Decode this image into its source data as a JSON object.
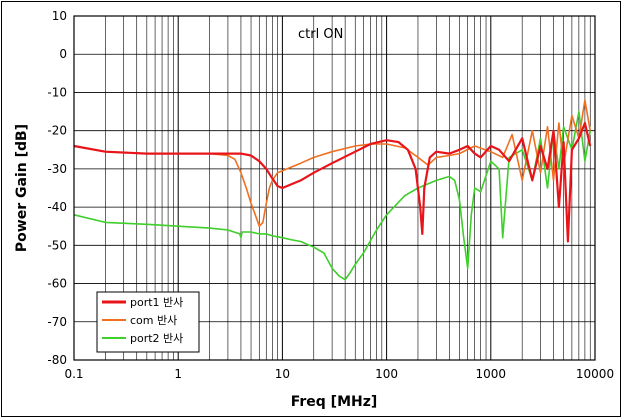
{
  "chart_data": {
    "type": "line",
    "title": "",
    "annotation": "ctrl ON",
    "xlabel": "Freq [MHz]",
    "ylabel": "Power Gain [dB]",
    "xscale": "log",
    "xlim": [
      0.1,
      10000
    ],
    "ylim": [
      -80,
      10
    ],
    "x_ticks": [
      "0.1",
      "1",
      "10",
      "100",
      "1000",
      "10000"
    ],
    "y_ticks": [
      "10",
      "0",
      "-10",
      "-20",
      "-30",
      "-40",
      "-50",
      "-60",
      "-70",
      "-80"
    ],
    "grid": true,
    "legend_position": "bottom-left",
    "series": [
      {
        "name": "port1 반사",
        "color": "#e8141a",
        "x": [
          0.1,
          0.2,
          0.5,
          1,
          2,
          3,
          4,
          5,
          6,
          7,
          8,
          9,
          10,
          15,
          20,
          30,
          50,
          70,
          100,
          130,
          160,
          190,
          210,
          220,
          230,
          260,
          300,
          400,
          500,
          600,
          700,
          800,
          1000,
          1200,
          1500,
          2000,
          2500,
          3000,
          3500,
          4000,
          4500,
          5000,
          5500,
          6000,
          7000,
          8000,
          9000
        ],
        "y": [
          -24,
          -25.5,
          -26,
          -26,
          -26,
          -26,
          -26,
          -26.5,
          -28,
          -30,
          -32.5,
          -34.5,
          -35,
          -33,
          -31,
          -28.5,
          -25.5,
          -23.5,
          -22.5,
          -23,
          -25,
          -30,
          -40,
          -47,
          -35,
          -27,
          -25.5,
          -26,
          -25,
          -24,
          -26,
          -27,
          -24,
          -25,
          -28,
          -22,
          -33,
          -24,
          -30,
          -20,
          -40,
          -23,
          -49,
          -25,
          -22,
          -18,
          -24
        ]
      },
      {
        "name": "com 반사",
        "color": "#f07020",
        "x": [
          0.1,
          0.2,
          0.5,
          1,
          2,
          3,
          3.5,
          4,
          4.5,
          5,
          5.5,
          6,
          6.5,
          7,
          7.5,
          8,
          9,
          10,
          15,
          20,
          30,
          50,
          70,
          100,
          150,
          200,
          250,
          300,
          400,
          500,
          700,
          1000,
          1300,
          1600,
          2000,
          2500,
          3000,
          3500,
          4000,
          4500,
          5000,
          6000,
          7000,
          8000,
          9000
        ],
        "y": [
          -24,
          -25.5,
          -26,
          -26,
          -26,
          -26.5,
          -27.5,
          -31,
          -35,
          -39,
          -42,
          -45,
          -44,
          -39,
          -35,
          -33,
          -31,
          -30.5,
          -28.5,
          -27,
          -25.5,
          -24,
          -23.5,
          -23.5,
          -24.5,
          -27,
          -29,
          -27,
          -26.5,
          -26,
          -24,
          -25.5,
          -27,
          -21,
          -33,
          -20,
          -31,
          -19,
          -33,
          -18,
          -29,
          -16,
          -22,
          -12,
          -20
        ]
      },
      {
        "name": "port2 반사",
        "color": "#3ecf2a",
        "x": [
          0.1,
          0.2,
          0.5,
          1,
          2,
          3,
          3.9,
          4,
          4.1,
          5,
          6,
          7,
          8,
          10,
          12,
          15,
          20,
          25,
          30,
          35,
          40,
          45,
          50,
          60,
          80,
          100,
          150,
          200,
          300,
          400,
          450,
          500,
          550,
          600,
          650,
          700,
          800,
          1000,
          1200,
          1300,
          1500,
          2000,
          2500,
          3000,
          3500,
          4000,
          4500,
          5000,
          6000,
          7000,
          8000,
          9000
        ],
        "y": [
          -42,
          -44,
          -44.5,
          -45,
          -45.5,
          -46,
          -47,
          -48,
          -46.5,
          -46.5,
          -47,
          -47,
          -47.5,
          -48,
          -48.5,
          -49,
          -50.5,
          -52,
          -56,
          -58,
          -59,
          -57,
          -55,
          -52,
          -46,
          -42,
          -37,
          -35,
          -33,
          -32,
          -33,
          -38,
          -48,
          -56,
          -42,
          -35,
          -36,
          -28,
          -30,
          -48,
          -27,
          -25,
          -33,
          -22,
          -35,
          -20,
          -30,
          -19,
          -25,
          -15,
          -28,
          -20
        ]
      }
    ]
  }
}
